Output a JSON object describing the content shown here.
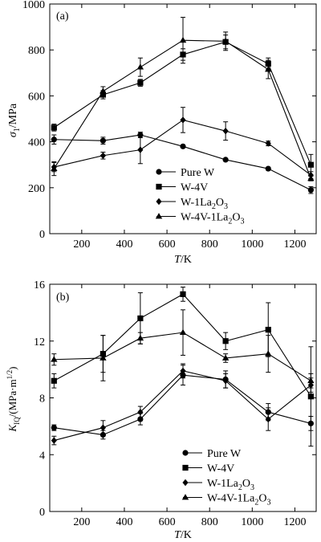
{
  "chart_data": [
    {
      "type": "line",
      "panel_label": "(a)",
      "xlabel": "T/K",
      "ylabel": "σ_1/MPa",
      "xlim": [
        50,
        1300
      ],
      "ylim": [
        0,
        1000
      ],
      "xticks": [
        "200",
        "400",
        "600",
        "800",
        "1000",
        "1200"
      ],
      "yticks": [
        "0",
        "200",
        "400",
        "600",
        "800",
        "1000"
      ],
      "grid": false,
      "legend_position": "bottom-right",
      "x": [
        70,
        300,
        475,
        675,
        875,
        1075,
        1275
      ],
      "series": [
        {
          "name": "Pure W",
          "marker": "circle",
          "values": [
            410,
            405,
            430,
            380,
            322,
            283,
            190
          ],
          "errors": [
            20,
            15,
            12,
            0,
            0,
            0,
            15
          ]
        },
        {
          "name": "W-4V",
          "marker": "square",
          "values": [
            462,
            605,
            657,
            780,
            835,
            740,
            300
          ],
          "errors": [
            15,
            18,
            15,
            25,
            30,
            25,
            45
          ]
        },
        {
          "name": "W-1La2O3",
          "marker": "diamond",
          "values": [
            290,
            340,
            365,
            495,
            447,
            393,
            255
          ],
          "errors": [
            20,
            15,
            60,
            55,
            40,
            10,
            15
          ]
        },
        {
          "name": "W-4V-1La2O3",
          "marker": "triangle",
          "values": [
            283,
            620,
            725,
            842,
            838,
            715,
            240
          ],
          "errors": [
            30,
            20,
            40,
            100,
            40,
            40,
            10
          ]
        }
      ]
    },
    {
      "type": "line",
      "panel_label": "(b)",
      "xlabel": "T/K",
      "ylabel": "K_IQ/(MPa·m^1/2)",
      "xlim": [
        50,
        1300
      ],
      "ylim": [
        0,
        16
      ],
      "xticks": [
        "200",
        "400",
        "600",
        "800",
        "1000",
        "1200"
      ],
      "yticks": [
        "0",
        "4",
        "8",
        "12",
        "16"
      ],
      "grid": false,
      "legend_position": "bottom-right",
      "x": [
        70,
        300,
        475,
        675,
        875,
        1075,
        1275
      ],
      "series": [
        {
          "name": "Pure W",
          "marker": "circle",
          "values": [
            5.9,
            5.4,
            6.5,
            9.6,
            9.3,
            7.0,
            6.2
          ],
          "errors": [
            0.2,
            0.3,
            0.4,
            0.7,
            0.6,
            0.6,
            0.5
          ]
        },
        {
          "name": "W-4V",
          "marker": "square",
          "values": [
            9.2,
            11.1,
            13.6,
            15.3,
            12.0,
            12.8,
            8.1
          ],
          "errors": [
            0.5,
            1.3,
            1.8,
            0.5,
            0.6,
            1.9,
            3.5
          ]
        },
        {
          "name": "W-1La2O3",
          "marker": "diamond",
          "values": [
            5.0,
            5.9,
            7.0,
            9.9,
            9.2,
            6.5,
            8.9
          ],
          "errors": [
            0.3,
            0.5,
            0.4,
            0.5,
            0.5,
            0.8,
            0.5
          ]
        },
        {
          "name": "W-4V-1La2O3",
          "marker": "triangle",
          "values": [
            10.7,
            10.8,
            12.2,
            12.6,
            10.8,
            11.1,
            9.2
          ],
          "errors": [
            0.4,
            1.6,
            0.4,
            1.6,
            0.3,
            1.3,
            0.5
          ]
        }
      ]
    }
  ]
}
